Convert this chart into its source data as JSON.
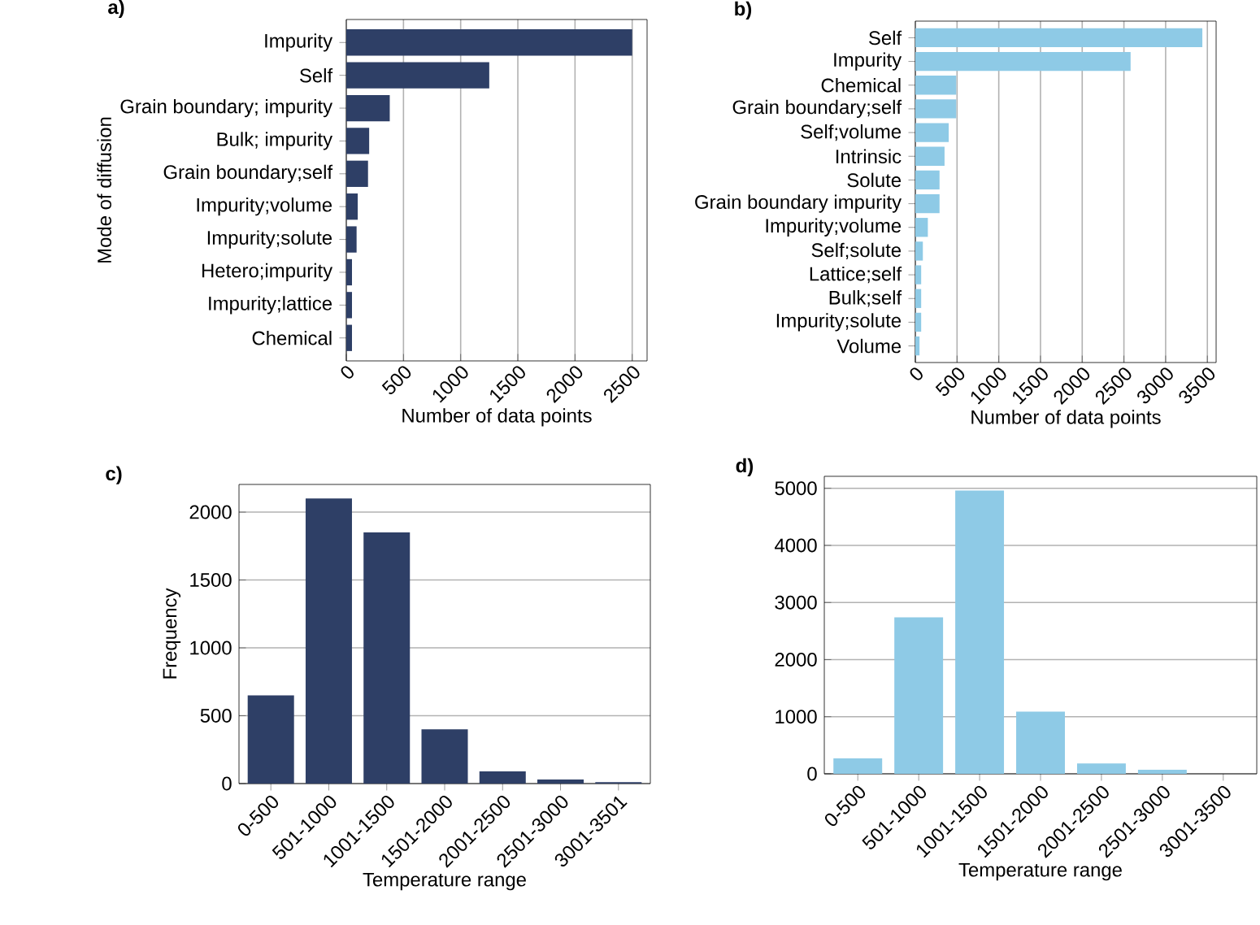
{
  "chart_data": [
    {
      "type": "bar",
      "orientation": "horizontal",
      "title": "a)",
      "ylabel": "Mode of diffusion",
      "xlabel": "Number of data points",
      "categories": [
        "Impurity",
        "Self",
        "Grain boundary; impurity",
        "Bulk; impurity",
        "Grain boundary;self",
        "Impurity;volume",
        "Impurity;solute",
        "Hetero;impurity",
        "Impurity;lattice",
        "Chemical"
      ],
      "values": [
        2500,
        1250,
        380,
        200,
        190,
        100,
        90,
        50,
        50,
        50
      ],
      "color": "#2e3f66",
      "xlim": [
        0,
        2630
      ],
      "xticks": [
        0,
        500,
        1000,
        1500,
        2000,
        2500
      ],
      "grid": "x"
    },
    {
      "type": "bar",
      "orientation": "horizontal",
      "title": "b)",
      "xlabel": "Number of data points",
      "categories": [
        "Self",
        "Impurity",
        "Chemical",
        "Grain boundary;self",
        "Self;volume",
        "Intrinsic",
        "Solute",
        "Grain boundary impurity",
        "Impurity;volume",
        "Self;solute",
        "Lattice;self",
        "Bulk;self",
        "Impurity;solute",
        "Volume"
      ],
      "values": [
        3440,
        2580,
        490,
        490,
        400,
        350,
        290,
        290,
        150,
        90,
        70,
        70,
        70,
        50
      ],
      "color": "#8ecae6",
      "xlim": [
        0,
        3605
      ],
      "xticks": [
        0,
        500,
        1000,
        1500,
        2000,
        2500,
        3000,
        3500
      ],
      "grid": "x"
    },
    {
      "type": "bar",
      "title": "c)",
      "ylabel": "Frequency",
      "xlabel": "Temperature range",
      "categories": [
        "0-500",
        "501-1000",
        "1001-1500",
        "1501-2000",
        "2001-2500",
        "2501-3000",
        "3001-3501"
      ],
      "values": [
        650,
        2100,
        1850,
        400,
        90,
        30,
        10
      ],
      "color": "#2e3f66",
      "ylim": [
        0,
        2204
      ],
      "yticks": [
        0,
        500,
        1000,
        1500,
        2000
      ],
      "grid": "y"
    },
    {
      "type": "bar",
      "title": "d)",
      "xlabel": "Temperature range",
      "categories": [
        "0-500",
        "501-1000",
        "1001-1500",
        "1501-2000",
        "2001-2500",
        "2501-3000",
        "3001-3500"
      ],
      "values": [
        270,
        2740,
        4960,
        1090,
        180,
        70,
        null
      ],
      "color": "#8ecae6",
      "ylim": [
        0,
        5209
      ],
      "yticks": [
        0,
        1000,
        2000,
        3000,
        4000,
        5000
      ],
      "grid": "y"
    }
  ]
}
